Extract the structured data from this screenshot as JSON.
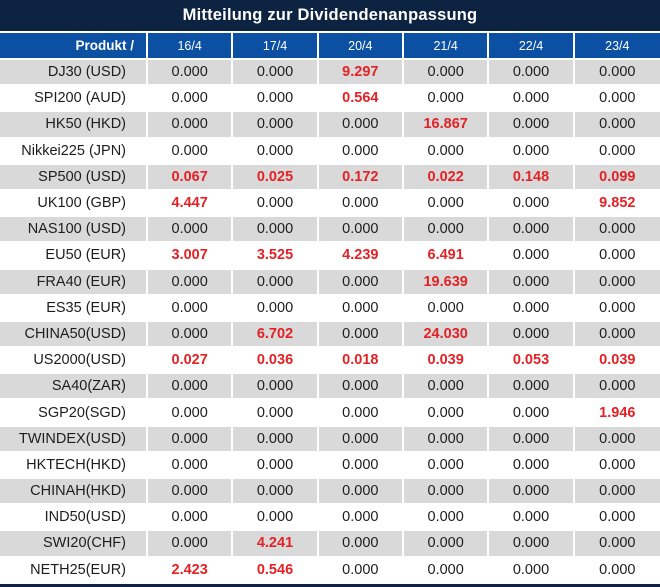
{
  "title": "Mitteilung zur Dividendenanpassung",
  "table": {
    "product_header": "Produkt /",
    "date_columns": [
      "16/4",
      "17/4",
      "20/4",
      "21/4",
      "22/4",
      "23/4"
    ],
    "zero_value": "0.000",
    "rows": [
      {
        "product": "DJ30 (USD)",
        "values": [
          "0.000",
          "0.000",
          "9.297",
          "0.000",
          "0.000",
          "0.000"
        ]
      },
      {
        "product": "SPI200 (AUD)",
        "values": [
          "0.000",
          "0.000",
          "0.564",
          "0.000",
          "0.000",
          "0.000"
        ]
      },
      {
        "product": "HK50 (HKD)",
        "values": [
          "0.000",
          "0.000",
          "0.000",
          "16.867",
          "0.000",
          "0.000"
        ]
      },
      {
        "product": "Nikkei225 (JPN)",
        "values": [
          "0.000",
          "0.000",
          "0.000",
          "0.000",
          "0.000",
          "0.000"
        ]
      },
      {
        "product": "SP500 (USD)",
        "values": [
          "0.067",
          "0.025",
          "0.172",
          "0.022",
          "0.148",
          "0.099"
        ]
      },
      {
        "product": "UK100 (GBP)",
        "values": [
          "4.447",
          "0.000",
          "0.000",
          "0.000",
          "0.000",
          "9.852"
        ]
      },
      {
        "product": "NAS100 (USD)",
        "values": [
          "0.000",
          "0.000",
          "0.000",
          "0.000",
          "0.000",
          "0.000"
        ]
      },
      {
        "product": "EU50 (EUR)",
        "values": [
          "3.007",
          "3.525",
          "4.239",
          "6.491",
          "0.000",
          "0.000"
        ]
      },
      {
        "product": "FRA40 (EUR)",
        "values": [
          "0.000",
          "0.000",
          "0.000",
          "19.639",
          "0.000",
          "0.000"
        ]
      },
      {
        "product": "ES35 (EUR)",
        "values": [
          "0.000",
          "0.000",
          "0.000",
          "0.000",
          "0.000",
          "0.000"
        ]
      },
      {
        "product": "CHINA50(USD)",
        "values": [
          "0.000",
          "6.702",
          "0.000",
          "24.030",
          "0.000",
          "0.000"
        ]
      },
      {
        "product": "US2000(USD)",
        "values": [
          "0.027",
          "0.036",
          "0.018",
          "0.039",
          "0.053",
          "0.039"
        ]
      },
      {
        "product": "SA40(ZAR)",
        "values": [
          "0.000",
          "0.000",
          "0.000",
          "0.000",
          "0.000",
          "0.000"
        ]
      },
      {
        "product": "SGP20(SGD)",
        "values": [
          "0.000",
          "0.000",
          "0.000",
          "0.000",
          "0.000",
          "1.946"
        ]
      },
      {
        "product": "TWINDEX(USD)",
        "values": [
          "0.000",
          "0.000",
          "0.000",
          "0.000",
          "0.000",
          "0.000"
        ]
      },
      {
        "product": "HKTECH(HKD)",
        "values": [
          "0.000",
          "0.000",
          "0.000",
          "0.000",
          "0.000",
          "0.000"
        ]
      },
      {
        "product": "CHINAH(HKD)",
        "values": [
          "0.000",
          "0.000",
          "0.000",
          "0.000",
          "0.000",
          "0.000"
        ]
      },
      {
        "product": "IND50(USD)",
        "values": [
          "0.000",
          "0.000",
          "0.000",
          "0.000",
          "0.000",
          "0.000"
        ]
      },
      {
        "product": "SWI20(CHF)",
        "values": [
          "0.000",
          "4.241",
          "0.000",
          "0.000",
          "0.000",
          "0.000"
        ]
      },
      {
        "product": "NETH25(EUR)",
        "values": [
          "2.423",
          "0.546",
          "0.000",
          "0.000",
          "0.000",
          "0.000"
        ]
      }
    ]
  },
  "colors": {
    "title_bar": "#0d2342",
    "header": "#0b50a2",
    "row_alt": "#d9d9d9",
    "row_base": "#ffffff",
    "value_red": "#e32226",
    "text": "#1d1d1d"
  }
}
